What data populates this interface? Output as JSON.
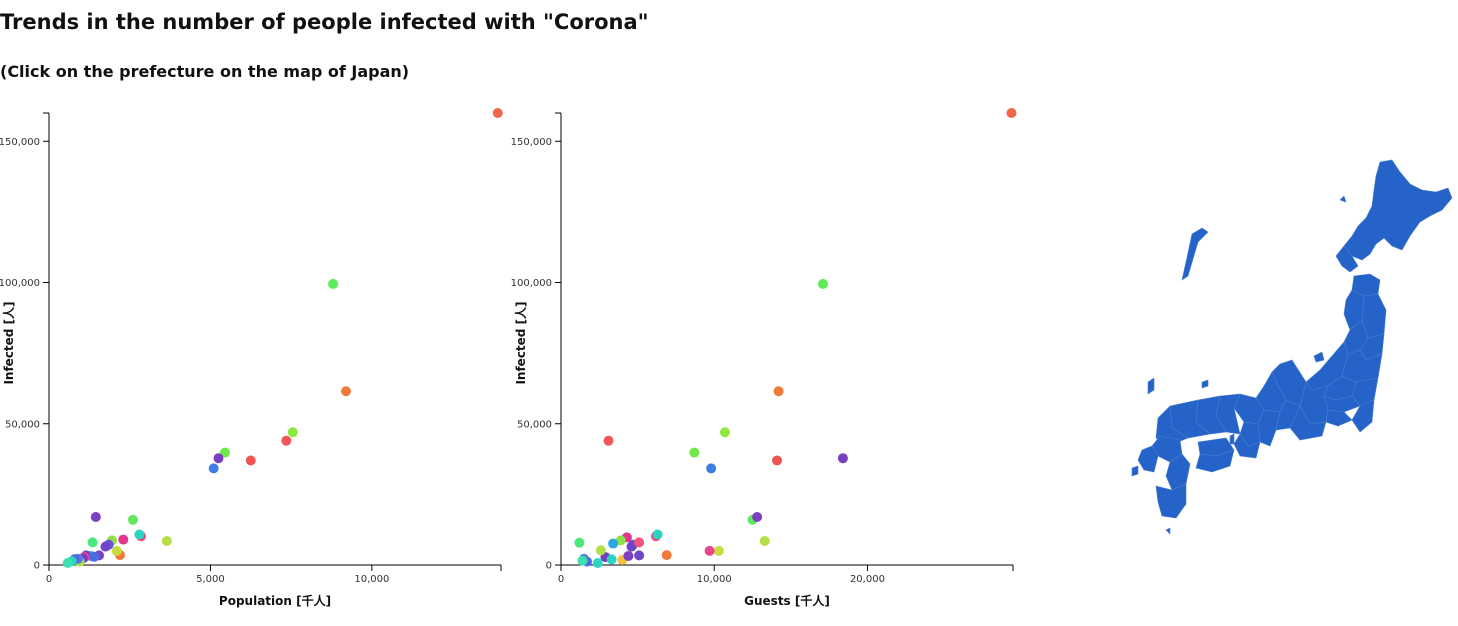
{
  "page": {
    "title": "Trends in the number of people infected with \"Corona\"",
    "subtitle": "(Click on the prefecture on the map of Japan)"
  },
  "map": {
    "fill_color": "#2563c9",
    "border_color": "#4a7fd0"
  },
  "chart_data": [
    {
      "type": "scatter",
      "xlabel": "Population [千人]",
      "ylabel": "Infected [人]",
      "xlim": [
        0,
        14000
      ],
      "ylim": [
        0,
        160000
      ],
      "xticks": [
        0,
        5000,
        10000
      ],
      "xtick_labels": [
        "0",
        "5,000",
        "10,000"
      ],
      "yticks": [
        0,
        50000,
        100000,
        150000
      ],
      "ytick_labels": [
        "0",
        "50,000",
        "100,000",
        "150,000"
      ],
      "grid": false,
      "points": [
        {
          "x": 13900,
          "y": 160000,
          "color": "#f0674a"
        },
        {
          "x": 8800,
          "y": 99500,
          "color": "#5ded5a"
        },
        {
          "x": 9200,
          "y": 61500,
          "color": "#f07a3c"
        },
        {
          "x": 7550,
          "y": 47000,
          "color": "#8fe83e"
        },
        {
          "x": 7350,
          "y": 44000,
          "color": "#f2555a"
        },
        {
          "x": 6250,
          "y": 37000,
          "color": "#ef5554"
        },
        {
          "x": 5450,
          "y": 39800,
          "color": "#6fe84a"
        },
        {
          "x": 5250,
          "y": 37800,
          "color": "#7b3fc0"
        },
        {
          "x": 5100,
          "y": 34200,
          "color": "#3f7de3"
        },
        {
          "x": 3650,
          "y": 8500,
          "color": "#b4e04a"
        },
        {
          "x": 2850,
          "y": 10200,
          "color": "#f0457a"
        },
        {
          "x": 2800,
          "y": 10800,
          "color": "#29d4c0"
        },
        {
          "x": 2600,
          "y": 16000,
          "color": "#62e85c"
        },
        {
          "x": 2300,
          "y": 9000,
          "color": "#e6358f"
        },
        {
          "x": 2200,
          "y": 3500,
          "color": "#f07a3c"
        },
        {
          "x": 2100,
          "y": 5000,
          "color": "#c8dc40"
        },
        {
          "x": 1950,
          "y": 8700,
          "color": "#8fe04a"
        },
        {
          "x": 1850,
          "y": 7200,
          "color": "#6b52d6"
        },
        {
          "x": 1750,
          "y": 6500,
          "color": "#6f44c8"
        },
        {
          "x": 1450,
          "y": 17000,
          "color": "#7b3fc0"
        },
        {
          "x": 1350,
          "y": 8000,
          "color": "#4ce87a"
        },
        {
          "x": 1300,
          "y": 3200,
          "color": "#2da5e0"
        },
        {
          "x": 1150,
          "y": 3400,
          "color": "#6a48c8"
        },
        {
          "x": 1100,
          "y": 2800,
          "color": "#e8458c"
        },
        {
          "x": 1050,
          "y": 2300,
          "color": "#7a3cc2"
        },
        {
          "x": 950,
          "y": 1200,
          "color": "#b2e04a"
        },
        {
          "x": 900,
          "y": 2200,
          "color": "#5a7be0"
        },
        {
          "x": 800,
          "y": 2100,
          "color": "#4c6fe0"
        },
        {
          "x": 700,
          "y": 1300,
          "color": "#2ad7c5"
        },
        {
          "x": 580,
          "y": 700,
          "color": "#3ee0b0"
        },
        {
          "x": 1550,
          "y": 3400,
          "color": "#7f3fc2"
        },
        {
          "x": 1400,
          "y": 2900,
          "color": "#4a6ee0"
        }
      ]
    },
    {
      "type": "scatter",
      "xlabel": "Guests [千人]",
      "ylabel": "Infected [人]",
      "xlim": [
        0,
        29500
      ],
      "ylim": [
        0,
        160000
      ],
      "xticks": [
        0,
        10000,
        20000
      ],
      "xtick_labels": [
        "0",
        "10,000",
        "20,000"
      ],
      "yticks": [
        0,
        50000,
        100000,
        150000
      ],
      "ytick_labels": [
        "0",
        "50,000",
        "100,000",
        "150,000"
      ],
      "grid": false,
      "points": [
        {
          "x": 29400,
          "y": 160000,
          "color": "#f0674a"
        },
        {
          "x": 17100,
          "y": 99500,
          "color": "#5ded5a"
        },
        {
          "x": 14200,
          "y": 61500,
          "color": "#f07a3c"
        },
        {
          "x": 10700,
          "y": 47000,
          "color": "#8fe83e"
        },
        {
          "x": 3100,
          "y": 44000,
          "color": "#f2555a"
        },
        {
          "x": 14100,
          "y": 37000,
          "color": "#ef5554"
        },
        {
          "x": 8700,
          "y": 39800,
          "color": "#6fe84a"
        },
        {
          "x": 18400,
          "y": 37800,
          "color": "#7b3fc0"
        },
        {
          "x": 9800,
          "y": 34200,
          "color": "#3f7de3"
        },
        {
          "x": 13300,
          "y": 8500,
          "color": "#b4e04a"
        },
        {
          "x": 6200,
          "y": 10200,
          "color": "#f0457a"
        },
        {
          "x": 6300,
          "y": 10800,
          "color": "#29d4c0"
        },
        {
          "x": 12500,
          "y": 16000,
          "color": "#62e85c"
        },
        {
          "x": 4300,
          "y": 9800,
          "color": "#e6358f"
        },
        {
          "x": 6900,
          "y": 3500,
          "color": "#f07a3c"
        },
        {
          "x": 10300,
          "y": 5000,
          "color": "#c8dc40"
        },
        {
          "x": 3900,
          "y": 8700,
          "color": "#8fe04a"
        },
        {
          "x": 4700,
          "y": 7200,
          "color": "#6b52d6"
        },
        {
          "x": 4600,
          "y": 6500,
          "color": "#6f44c8"
        },
        {
          "x": 12800,
          "y": 17000,
          "color": "#7b3fc0"
        },
        {
          "x": 1200,
          "y": 7900,
          "color": "#4ce87a"
        },
        {
          "x": 3400,
          "y": 7600,
          "color": "#2da5e0"
        },
        {
          "x": 5100,
          "y": 3400,
          "color": "#6a48c8"
        },
        {
          "x": 9700,
          "y": 5000,
          "color": "#e8458c"
        },
        {
          "x": 2900,
          "y": 2800,
          "color": "#7a3cc2"
        },
        {
          "x": 2600,
          "y": 5200,
          "color": "#b2e04a"
        },
        {
          "x": 1500,
          "y": 2200,
          "color": "#5a7be0"
        },
        {
          "x": 1700,
          "y": 1200,
          "color": "#4c6fe0"
        },
        {
          "x": 2400,
          "y": 700,
          "color": "#2ad7c5"
        },
        {
          "x": 1400,
          "y": 1500,
          "color": "#3ee0b0"
        },
        {
          "x": 5100,
          "y": 8000,
          "color": "#f2557a"
        },
        {
          "x": 4000,
          "y": 1800,
          "color": "#f0c040"
        },
        {
          "x": 4400,
          "y": 3200,
          "color": "#7f3fc2"
        },
        {
          "x": 3300,
          "y": 2000,
          "color": "#29d4c0"
        }
      ]
    }
  ]
}
